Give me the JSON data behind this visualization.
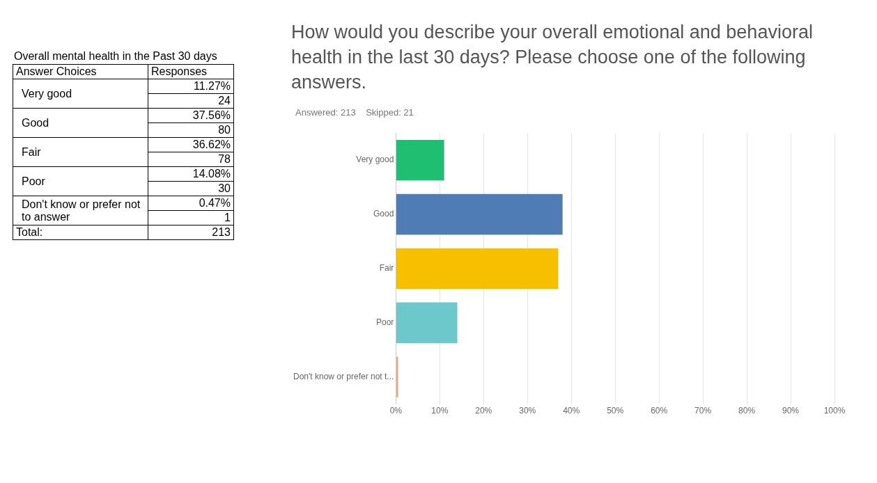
{
  "chart_data": [
    {
      "type": "other",
      "title": "Overall mental health in the Past 30 days",
      "annotations": [
        "Answer Choices",
        "Responses",
        "Very good",
        "11.27%",
        "24",
        "Good",
        "37.56%",
        "80",
        "Fair",
        "36.62%",
        "78",
        "Poor",
        "14.08%",
        "30",
        "Don't know or prefer not to answer",
        "0.47%",
        "1",
        "Total:",
        "213"
      ]
    },
    {
      "type": "bar",
      "orientation": "horizontal",
      "title": "How would you describe your overall emotional and behavioral health in the last 30 days? Please choose one of the following answers.",
      "subtitle": "Answered: 213    Skipped: 21",
      "categories": [
        "Very good",
        "Good",
        "Fair",
        "Poor",
        "Don't know or prefer not t..."
      ],
      "values": [
        11,
        38,
        37,
        14,
        0.5
      ],
      "colors": [
        "#1fbf72",
        "#507cb6",
        "#f6bf00",
        "#6cc8cb",
        "#f4a582"
      ],
      "xlim": [
        0,
        100
      ],
      "xticks": [
        {
          "value": 0,
          "label": "0%"
        },
        {
          "value": 10,
          "label": "10%"
        },
        {
          "value": 20,
          "label": "20%"
        },
        {
          "value": 30,
          "label": "30%"
        },
        {
          "value": 40,
          "label": "40%"
        },
        {
          "value": 50,
          "label": "50%"
        },
        {
          "value": 60,
          "label": "60%"
        },
        {
          "value": 70,
          "label": "70%"
        },
        {
          "value": 80,
          "label": "80%"
        },
        {
          "value": 90,
          "label": "90%"
        },
        {
          "value": 100,
          "label": "100%"
        }
      ],
      "grid": "x",
      "legend": false
    }
  ]
}
